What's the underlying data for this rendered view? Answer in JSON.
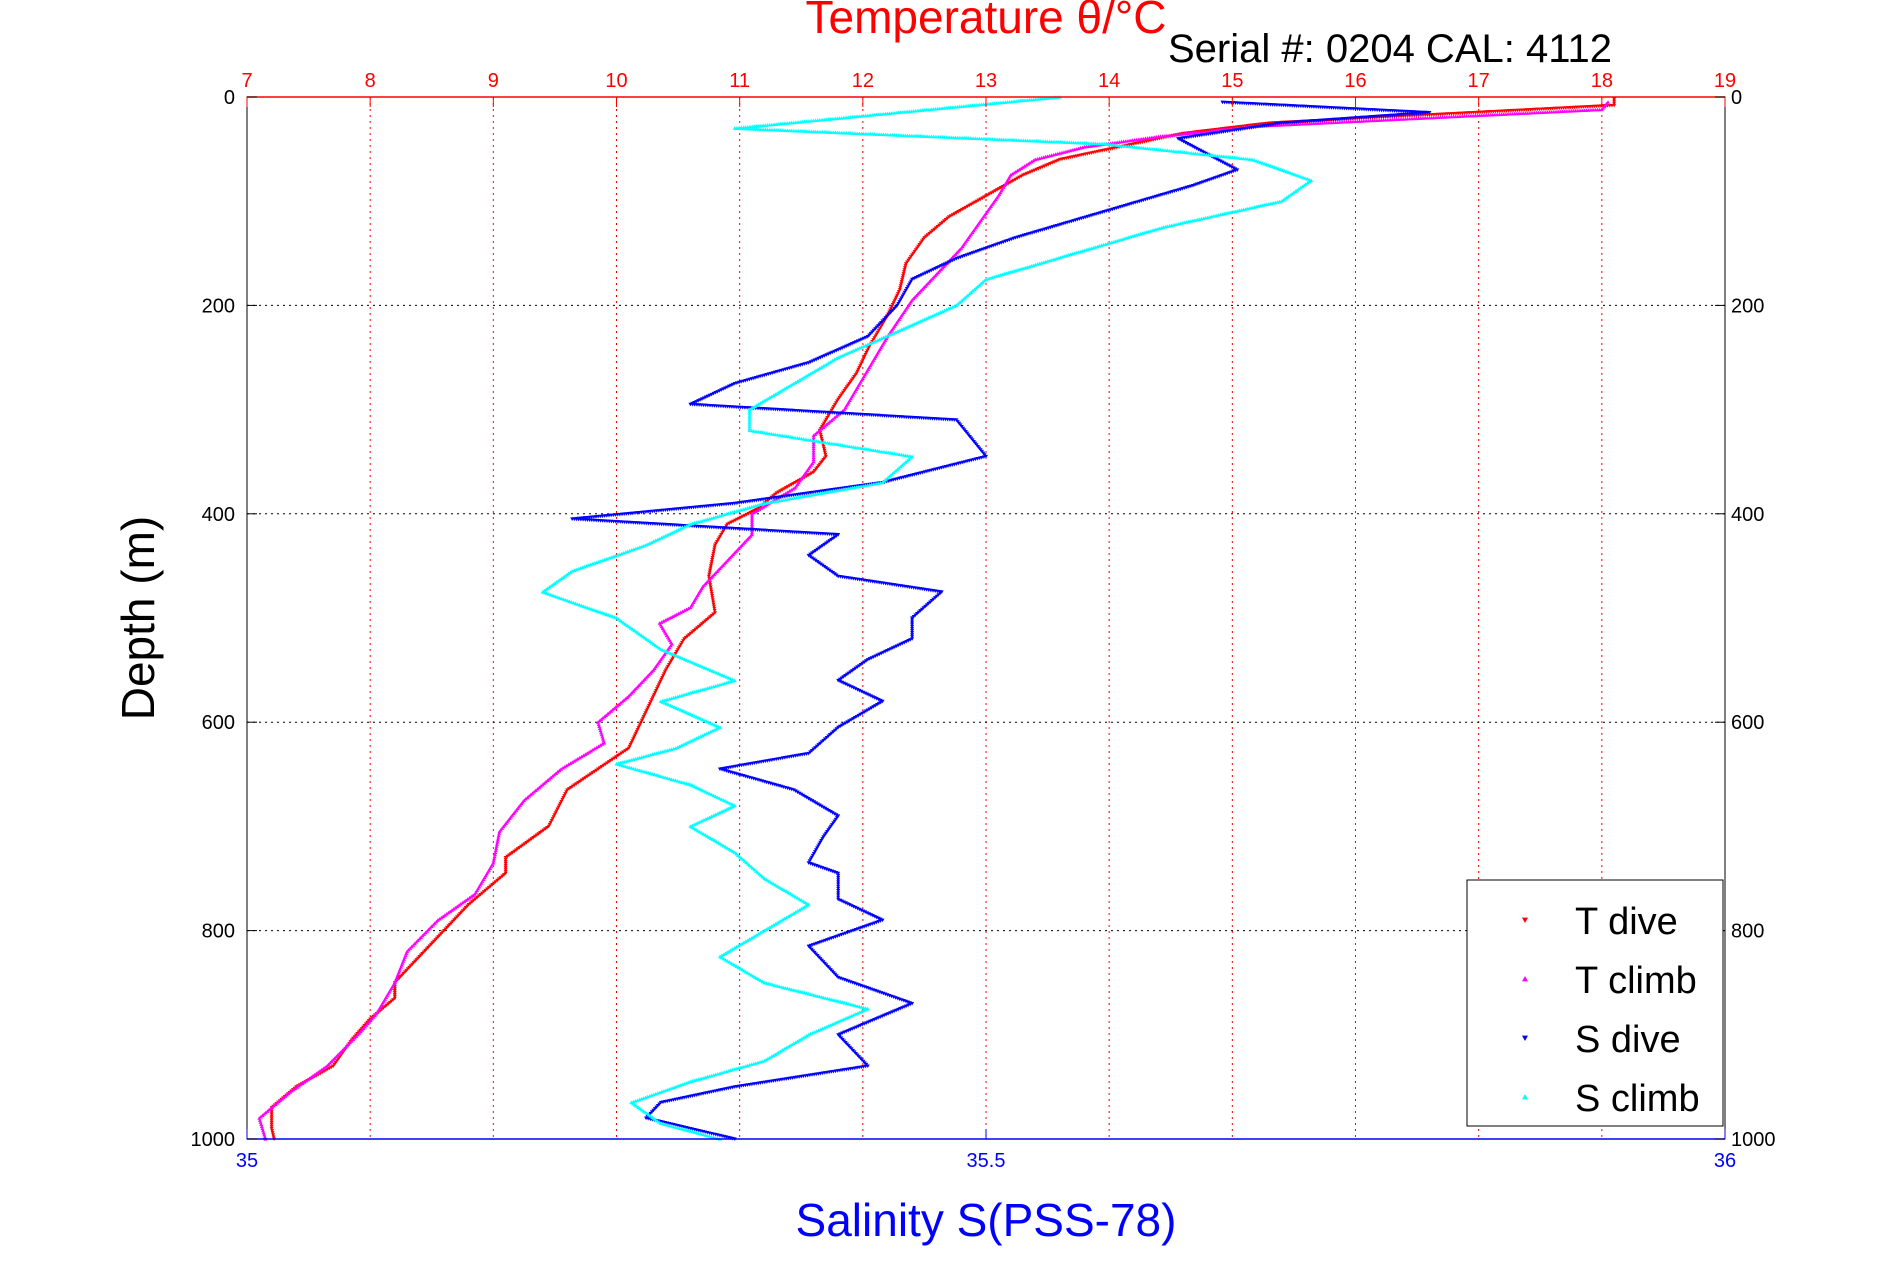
{
  "chart_data": {
    "type": "scatter",
    "title": "Temperature θ/°C",
    "subtitle": "Serial #: 0204  CAL: 4112",
    "xlabel": "Salinity S(PSS-78)",
    "ylabel": "Depth (m)",
    "grid": true,
    "legend_position": "bottom-right",
    "y_axis": {
      "range": [
        1000,
        0
      ],
      "ticks": [
        0,
        200,
        400,
        600,
        800,
        1000
      ],
      "reversed": true
    },
    "top_axis": {
      "label": "Temperature θ/°C",
      "range": [
        7,
        19
      ],
      "ticks": [
        7,
        8,
        9,
        10,
        11,
        12,
        13,
        14,
        15,
        16,
        17,
        18,
        19
      ],
      "color": "#ff0000"
    },
    "bottom_axis": {
      "label": "Salinity S(PSS-78)",
      "range": [
        35,
        36
      ],
      "ticks": [
        "35",
        "35.5",
        "36"
      ],
      "tick_values": [
        35,
        35.5,
        36
      ],
      "color": "#0000ff"
    },
    "series": [
      {
        "name": "T dive",
        "axis": "top",
        "color": "#ff0000",
        "marker": "triangle-down",
        "points": [
          [
            18.1,
            2
          ],
          [
            18.1,
            8
          ],
          [
            15.3,
            25
          ],
          [
            14.6,
            35
          ],
          [
            14.2,
            45
          ],
          [
            13.6,
            60
          ],
          [
            13.3,
            75
          ],
          [
            13.0,
            95
          ],
          [
            12.7,
            115
          ],
          [
            12.5,
            135
          ],
          [
            12.35,
            160
          ],
          [
            12.3,
            185
          ],
          [
            12.2,
            210
          ],
          [
            12.05,
            240
          ],
          [
            11.95,
            265
          ],
          [
            11.8,
            290
          ],
          [
            11.65,
            320
          ],
          [
            11.7,
            345
          ],
          [
            11.6,
            360
          ],
          [
            11.3,
            380
          ],
          [
            11.15,
            395
          ],
          [
            10.9,
            410
          ],
          [
            10.8,
            430
          ],
          [
            10.75,
            460
          ],
          [
            10.8,
            495
          ],
          [
            10.55,
            520
          ],
          [
            10.4,
            550
          ],
          [
            10.3,
            575
          ],
          [
            10.2,
            600
          ],
          [
            10.1,
            625
          ],
          [
            9.85,
            645
          ],
          [
            9.6,
            665
          ],
          [
            9.45,
            700
          ],
          [
            9.1,
            730
          ],
          [
            9.1,
            745
          ],
          [
            8.8,
            775
          ],
          [
            8.6,
            800
          ],
          [
            8.4,
            825
          ],
          [
            8.2,
            850
          ],
          [
            8.2,
            865
          ],
          [
            8.0,
            885
          ],
          [
            7.85,
            905
          ],
          [
            7.7,
            930
          ],
          [
            7.4,
            950
          ],
          [
            7.2,
            970
          ],
          [
            7.2,
            990
          ],
          [
            7.22,
            1000
          ]
        ]
      },
      {
        "name": "T climb",
        "axis": "top",
        "color": "#ff00ff",
        "marker": "triangle-up",
        "points": [
          [
            18.05,
            5
          ],
          [
            18.0,
            12
          ],
          [
            16.6,
            20
          ],
          [
            15.2,
            28
          ],
          [
            14.4,
            38
          ],
          [
            13.8,
            48
          ],
          [
            13.4,
            60
          ],
          [
            13.2,
            75
          ],
          [
            13.1,
            95
          ],
          [
            12.95,
            120
          ],
          [
            12.8,
            145
          ],
          [
            12.6,
            170
          ],
          [
            12.4,
            195
          ],
          [
            12.2,
            230
          ],
          [
            12.0,
            270
          ],
          [
            11.85,
            300
          ],
          [
            11.6,
            325
          ],
          [
            11.6,
            350
          ],
          [
            11.45,
            375
          ],
          [
            11.1,
            400
          ],
          [
            11.1,
            420
          ],
          [
            10.9,
            445
          ],
          [
            10.7,
            470
          ],
          [
            10.6,
            490
          ],
          [
            10.35,
            505
          ],
          [
            10.45,
            525
          ],
          [
            10.3,
            550
          ],
          [
            10.1,
            575
          ],
          [
            9.85,
            600
          ],
          [
            9.9,
            620
          ],
          [
            9.55,
            645
          ],
          [
            9.25,
            675
          ],
          [
            9.05,
            705
          ],
          [
            9.0,
            735
          ],
          [
            8.85,
            765
          ],
          [
            8.55,
            790
          ],
          [
            8.3,
            820
          ],
          [
            8.2,
            850
          ],
          [
            8.05,
            880
          ],
          [
            7.9,
            900
          ],
          [
            7.65,
            930
          ],
          [
            7.35,
            955
          ],
          [
            7.1,
            980
          ],
          [
            7.15,
            1000
          ]
        ]
      },
      {
        "name": "S dive",
        "axis": "bottom",
        "color": "#0000ff",
        "marker": "triangle-down",
        "points": [
          [
            35.66,
            5
          ],
          [
            35.8,
            15
          ],
          [
            35.7,
            25
          ],
          [
            35.63,
            40
          ],
          [
            35.65,
            55
          ],
          [
            35.67,
            70
          ],
          [
            35.64,
            85
          ],
          [
            35.58,
            110
          ],
          [
            35.52,
            135
          ],
          [
            35.48,
            155
          ],
          [
            35.45,
            175
          ],
          [
            35.44,
            200
          ],
          [
            35.42,
            230
          ],
          [
            35.38,
            255
          ],
          [
            35.33,
            275
          ],
          [
            35.3,
            295
          ],
          [
            35.48,
            310
          ],
          [
            35.5,
            345
          ],
          [
            35.43,
            370
          ],
          [
            35.33,
            390
          ],
          [
            35.22,
            405
          ],
          [
            35.4,
            420
          ],
          [
            35.38,
            440
          ],
          [
            35.4,
            460
          ],
          [
            35.47,
            475
          ],
          [
            35.45,
            500
          ],
          [
            35.45,
            520
          ],
          [
            35.42,
            540
          ],
          [
            35.4,
            560
          ],
          [
            35.43,
            580
          ],
          [
            35.4,
            605
          ],
          [
            35.38,
            630
          ],
          [
            35.32,
            645
          ],
          [
            35.37,
            665
          ],
          [
            35.4,
            690
          ],
          [
            35.39,
            710
          ],
          [
            35.38,
            735
          ],
          [
            35.4,
            745
          ],
          [
            35.4,
            770
          ],
          [
            35.43,
            790
          ],
          [
            35.38,
            815
          ],
          [
            35.4,
            845
          ],
          [
            35.45,
            870
          ],
          [
            35.4,
            900
          ],
          [
            35.42,
            930
          ],
          [
            35.33,
            950
          ],
          [
            35.28,
            965
          ],
          [
            35.27,
            980
          ],
          [
            35.33,
            1000
          ]
        ]
      },
      {
        "name": "S climb",
        "axis": "bottom",
        "color": "#00ffff",
        "marker": "triangle-up",
        "points": [
          [
            35.55,
            0
          ],
          [
            35.33,
            30
          ],
          [
            35.58,
            45
          ],
          [
            35.68,
            60
          ],
          [
            35.72,
            80
          ],
          [
            35.7,
            100
          ],
          [
            35.62,
            125
          ],
          [
            35.56,
            150
          ],
          [
            35.5,
            175
          ],
          [
            35.48,
            200
          ],
          [
            35.44,
            225
          ],
          [
            35.4,
            250
          ],
          [
            35.37,
            275
          ],
          [
            35.34,
            300
          ],
          [
            35.34,
            320
          ],
          [
            35.45,
            345
          ],
          [
            35.43,
            370
          ],
          [
            35.35,
            390
          ],
          [
            35.3,
            410
          ],
          [
            35.27,
            430
          ],
          [
            35.22,
            455
          ],
          [
            35.2,
            475
          ],
          [
            35.25,
            500
          ],
          [
            35.28,
            530
          ],
          [
            35.33,
            560
          ],
          [
            35.28,
            580
          ],
          [
            35.32,
            605
          ],
          [
            35.29,
            625
          ],
          [
            35.25,
            640
          ],
          [
            35.3,
            660
          ],
          [
            35.33,
            680
          ],
          [
            35.3,
            700
          ],
          [
            35.33,
            725
          ],
          [
            35.35,
            750
          ],
          [
            35.38,
            775
          ],
          [
            35.35,
            800
          ],
          [
            35.32,
            825
          ],
          [
            35.35,
            850
          ],
          [
            35.42,
            875
          ],
          [
            35.38,
            900
          ],
          [
            35.35,
            925
          ],
          [
            35.3,
            945
          ],
          [
            35.26,
            965
          ],
          [
            35.28,
            985
          ],
          [
            35.32,
            1000
          ]
        ]
      }
    ]
  }
}
